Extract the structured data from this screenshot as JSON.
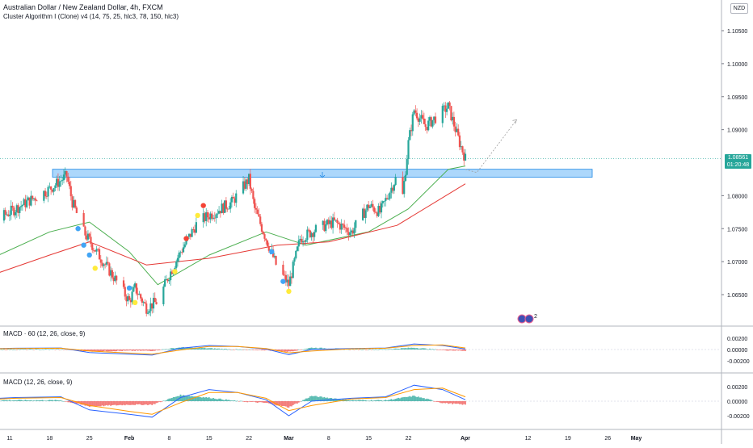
{
  "header": {
    "title": "Australian Dollar / New Zealand Dollar, 4h, FXCM",
    "indicator": "Cluster Algorithm I (Clone) v4 (14, 75, 25, hlc3, 78, 150, hlc3)",
    "currency": "NZD"
  },
  "price_tag": {
    "price": "1.08561",
    "countdown": "01:20:48"
  },
  "emoji_count": "2",
  "panes": {
    "macd60_label": "MACD · 60 (12, 26, close, 9)",
    "macd_label": "MACD (12, 26, close, 9)"
  },
  "colors": {
    "up": "#26a69a",
    "down": "#ef5350",
    "ma_fast": "#4caf50",
    "ma_slow": "#e53935",
    "zone": "#90caf9",
    "zone_border": "#1e88e5",
    "macd_line": "#2962ff",
    "signal_line": "#ff9800",
    "dot_blue": "#42a5f5",
    "dot_red": "#f44336",
    "dot_yellow": "#ffeb3b"
  },
  "chart_data": [
    {
      "type": "candlestick",
      "title": "Australian Dollar / New Zealand Dollar, 4h, FXCM",
      "x_ticks": [
        "11",
        "18",
        "25",
        "Feb",
        "8",
        "15",
        "22",
        "Mar",
        "8",
        "15",
        "22",
        "Apr",
        "12",
        "19",
        "26",
        "May"
      ],
      "y_ticks": [
        "1.10500",
        "1.10000",
        "1.09500",
        "1.09000",
        "1.08000",
        "1.07500",
        "1.07000",
        "1.06500"
      ],
      "ylim": [
        1.062,
        1.109
      ],
      "current_price": 1.08561,
      "support_zone": [
        1.0828,
        1.084
      ],
      "close_path": [
        {
          "x": "2021-01-04",
          "y": 1.069
        },
        {
          "x": "2021-01-08",
          "y": 1.076
        },
        {
          "x": "2021-01-12",
          "y": 1.078
        },
        {
          "x": "2021-01-15",
          "y": 1.0795
        },
        {
          "x": "2021-01-18",
          "y": 1.081
        },
        {
          "x": "2021-01-21",
          "y": 1.083
        },
        {
          "x": "2021-01-22",
          "y": 1.079
        },
        {
          "x": "2021-01-24",
          "y": 1.0745
        },
        {
          "x": "2021-01-27",
          "y": 1.0705
        },
        {
          "x": "2021-01-29",
          "y": 1.068
        },
        {
          "x": "2021-02-01",
          "y": 1.064
        },
        {
          "x": "2021-02-02",
          "y": 1.066
        },
        {
          "x": "2021-02-04",
          "y": 1.063
        },
        {
          "x": "2021-02-06",
          "y": 1.064
        },
        {
          "x": "2021-02-08",
          "y": 1.068
        },
        {
          "x": "2021-02-10",
          "y": 1.0715
        },
        {
          "x": "2021-02-13",
          "y": 1.076
        },
        {
          "x": "2021-02-16",
          "y": 1.0775
        },
        {
          "x": "2021-02-19",
          "y": 1.079
        },
        {
          "x": "2021-02-22",
          "y": 1.0825
        },
        {
          "x": "2021-02-23",
          "y": 1.078
        },
        {
          "x": "2021-02-25",
          "y": 1.0735
        },
        {
          "x": "2021-02-27",
          "y": 1.069
        },
        {
          "x": "2021-03-01",
          "y": 1.0665
        },
        {
          "x": "2021-03-03",
          "y": 1.0735
        },
        {
          "x": "2021-03-06",
          "y": 1.075
        },
        {
          "x": "2021-03-09",
          "y": 1.076
        },
        {
          "x": "2021-03-12",
          "y": 1.0745
        },
        {
          "x": "2021-03-15",
          "y": 1.0785
        },
        {
          "x": "2021-03-17",
          "y": 1.0775
        },
        {
          "x": "2021-03-20",
          "y": 1.083
        },
        {
          "x": "2021-03-21",
          "y": 1.08
        },
        {
          "x": "2021-03-22",
          "y": 1.088
        },
        {
          "x": "2021-03-23",
          "y": 1.093
        },
        {
          "x": "2021-03-25",
          "y": 1.0905
        },
        {
          "x": "2021-03-27",
          "y": 1.092
        },
        {
          "x": "2021-03-29",
          "y": 1.0935
        },
        {
          "x": "2021-03-31",
          "y": 1.088
        },
        {
          "x": "2021-04-01",
          "y": 1.0856
        }
      ],
      "moving_average_fast": [
        {
          "x": "2021-01-04",
          "y": 1.069
        },
        {
          "x": "2021-01-18",
          "y": 1.0745
        },
        {
          "x": "2021-01-25",
          "y": 1.076
        },
        {
          "x": "2021-02-01",
          "y": 1.0715
        },
        {
          "x": "2021-02-06",
          "y": 1.0665
        },
        {
          "x": "2021-02-15",
          "y": 1.071
        },
        {
          "x": "2021-02-25",
          "y": 1.0745
        },
        {
          "x": "2021-03-04",
          "y": 1.0725
        },
        {
          "x": "2021-03-15",
          "y": 1.0745
        },
        {
          "x": "2021-03-22",
          "y": 1.078
        },
        {
          "x": "2021-03-29",
          "y": 1.084
        },
        {
          "x": "2021-04-01",
          "y": 1.0845
        }
      ],
      "moving_average_slow": [
        {
          "x": "2021-01-04",
          "y": 1.0668
        },
        {
          "x": "2021-01-18",
          "y": 1.071
        },
        {
          "x": "2021-01-25",
          "y": 1.073
        },
        {
          "x": "2021-02-04",
          "y": 1.0695
        },
        {
          "x": "2021-02-15",
          "y": 1.0705
        },
        {
          "x": "2021-02-27",
          "y": 1.0725
        },
        {
          "x": "2021-03-08",
          "y": 1.073
        },
        {
          "x": "2021-03-20",
          "y": 1.0755
        },
        {
          "x": "2021-04-01",
          "y": 1.0818
        }
      ],
      "projection": [
        {
          "x": "2021-04-01",
          "y": 1.084
        },
        {
          "x": "2021-04-03",
          "y": 1.0835
        },
        {
          "x": "2021-04-10",
          "y": 1.0915
        }
      ],
      "signal_dots": [
        {
          "x": "2021-01-23",
          "y": 1.075,
          "color": "blue"
        },
        {
          "x": "2021-01-24",
          "y": 1.0725,
          "color": "blue"
        },
        {
          "x": "2021-01-25",
          "y": 1.071,
          "color": "blue"
        },
        {
          "x": "2021-01-26",
          "y": 1.069,
          "color": "yellow"
        },
        {
          "x": "2021-02-01",
          "y": 1.066,
          "color": "blue"
        },
        {
          "x": "2021-02-02",
          "y": 1.0638,
          "color": "yellow"
        },
        {
          "x": "2021-02-09",
          "y": 1.0685,
          "color": "yellow"
        },
        {
          "x": "2021-02-11",
          "y": 1.0735,
          "color": "red"
        },
        {
          "x": "2021-02-13",
          "y": 1.077,
          "color": "yellow"
        },
        {
          "x": "2021-02-14",
          "y": 1.0785,
          "color": "red"
        },
        {
          "x": "2021-02-26",
          "y": 1.0715,
          "color": "blue"
        },
        {
          "x": "2021-02-28",
          "y": 1.067,
          "color": "blue"
        },
        {
          "x": "2021-03-01",
          "y": 1.0655,
          "color": "yellow"
        }
      ]
    },
    {
      "type": "macd",
      "title": "MACD · 60 (12, 26, close, 9)",
      "y_ticks": [
        "0.00200",
        "0.00000",
        "-0.00200"
      ],
      "ylim": [
        -0.003,
        0.003
      ]
    },
    {
      "type": "macd",
      "title": "MACD (12, 26, close, 9)",
      "y_ticks": [
        "0.00200",
        "0.00000",
        "-0.00200"
      ],
      "ylim": [
        -0.003,
        0.003
      ],
      "macd_line": [
        {
          "x": "2021-01-04",
          "y": 0.0002
        },
        {
          "x": "2021-01-12",
          "y": 0.0005
        },
        {
          "x": "2021-01-20",
          "y": 0.0006
        },
        {
          "x": "2021-01-25",
          "y": -0.0012
        },
        {
          "x": "2021-02-01",
          "y": -0.0018
        },
        {
          "x": "2021-02-05",
          "y": -0.0022
        },
        {
          "x": "2021-02-10",
          "y": 0.0005
        },
        {
          "x": "2021-02-15",
          "y": 0.0016
        },
        {
          "x": "2021-02-20",
          "y": 0.0012
        },
        {
          "x": "2021-02-25",
          "y": 0.0002
        },
        {
          "x": "2021-03-01",
          "y": -0.002
        },
        {
          "x": "2021-03-05",
          "y": 0.0
        },
        {
          "x": "2021-03-12",
          "y": 0.0004
        },
        {
          "x": "2021-03-18",
          "y": 0.0006
        },
        {
          "x": "2021-03-23",
          "y": 0.0022
        },
        {
          "x": "2021-03-28",
          "y": 0.0016
        },
        {
          "x": "2021-04-01",
          "y": 0.0002
        }
      ],
      "signal_line": [
        {
          "x": "2021-01-04",
          "y": 0.0001
        },
        {
          "x": "2021-01-12",
          "y": 0.0004
        },
        {
          "x": "2021-01-20",
          "y": 0.0005
        },
        {
          "x": "2021-01-25",
          "y": -0.0006
        },
        {
          "x": "2021-02-01",
          "y": -0.0014
        },
        {
          "x": "2021-02-05",
          "y": -0.0018
        },
        {
          "x": "2021-02-10",
          "y": -0.0002
        },
        {
          "x": "2021-02-15",
          "y": 0.0012
        },
        {
          "x": "2021-02-20",
          "y": 0.0012
        },
        {
          "x": "2021-02-25",
          "y": 0.0004
        },
        {
          "x": "2021-03-01",
          "y": -0.0013
        },
        {
          "x": "2021-03-05",
          "y": -0.0006
        },
        {
          "x": "2021-03-12",
          "y": 0.0003
        },
        {
          "x": "2021-03-18",
          "y": 0.0005
        },
        {
          "x": "2021-03-23",
          "y": 0.0016
        },
        {
          "x": "2021-03-28",
          "y": 0.0018
        },
        {
          "x": "2021-04-01",
          "y": 0.0006
        }
      ]
    }
  ]
}
